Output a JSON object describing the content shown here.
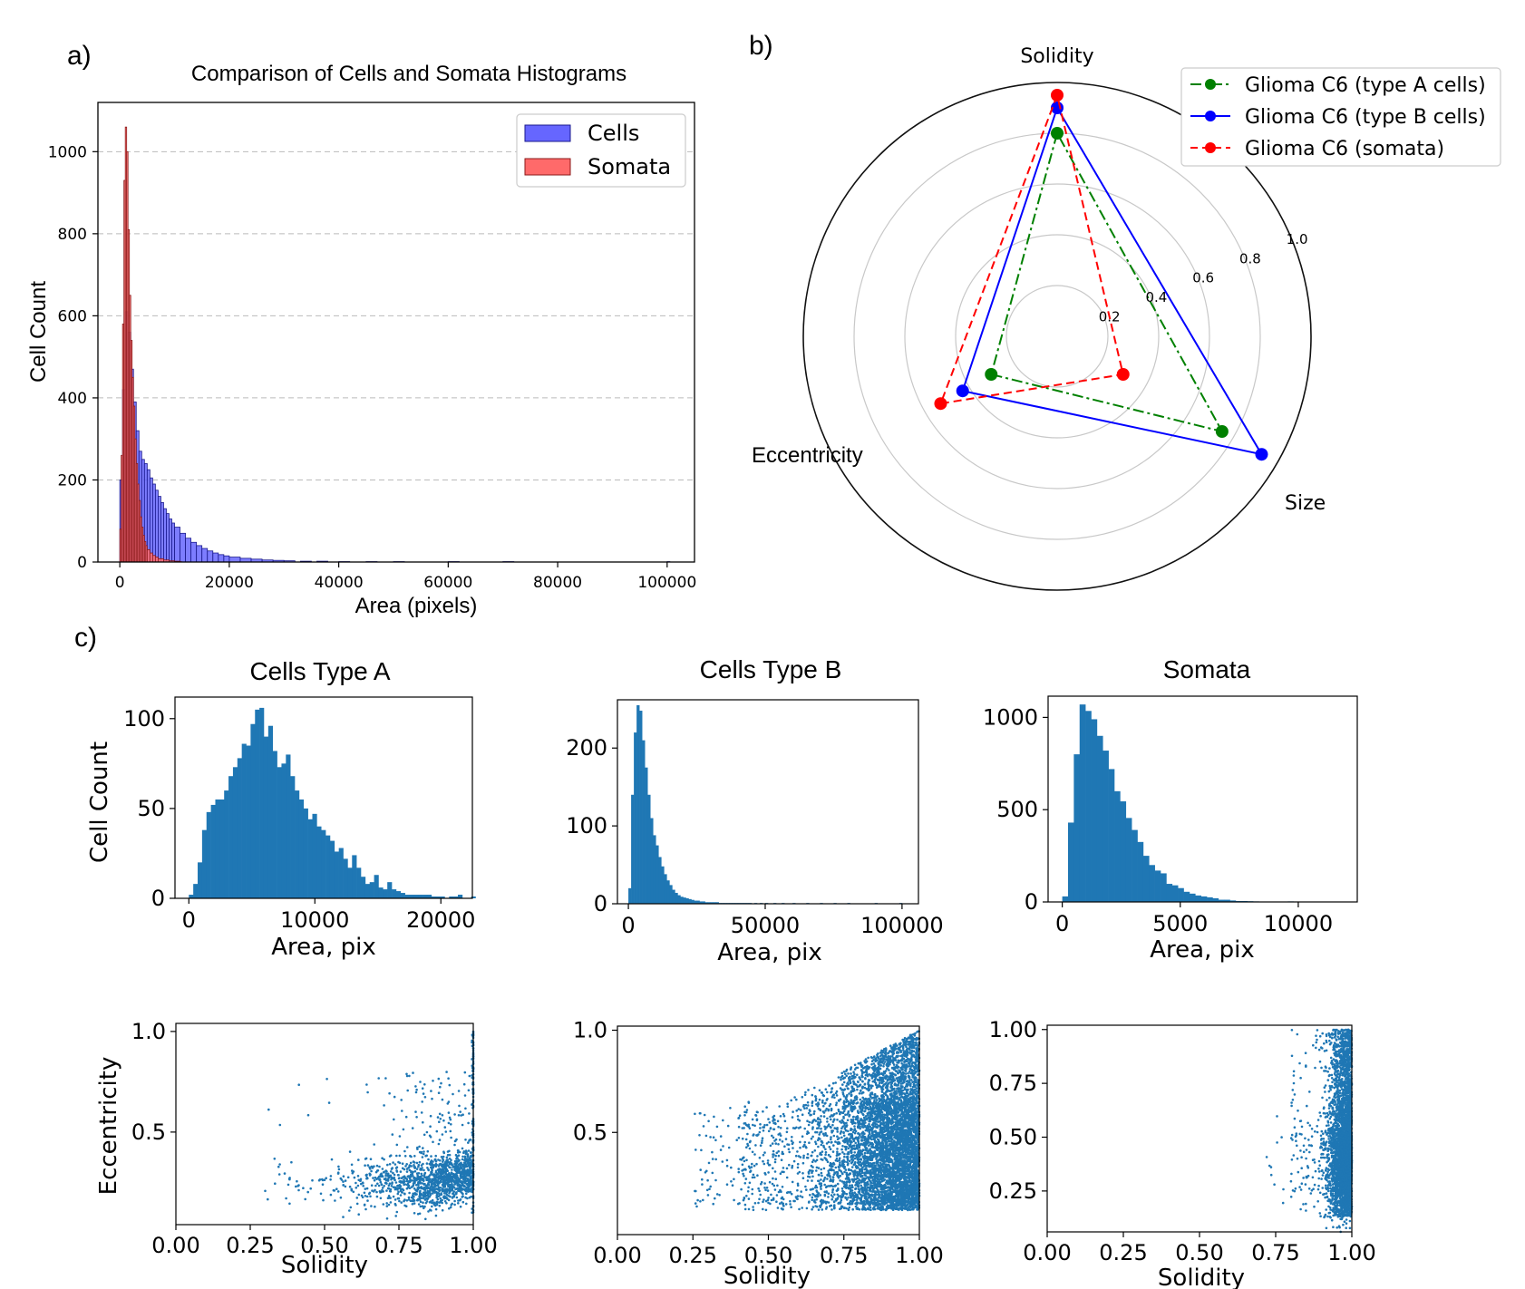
{
  "panels": {
    "a_label": "a)",
    "b_label": "b)",
    "c_label": "c)"
  },
  "chart_data": [
    {
      "id": "a",
      "type": "bar",
      "title": "Comparison of Cells and Somata Histograms",
      "xlabel": "Area (pixels)",
      "ylabel": "Cell Count",
      "xlim": [
        -4000,
        105000
      ],
      "ylim": [
        0,
        1120
      ],
      "xticks": [
        0,
        20000,
        40000,
        60000,
        80000,
        100000
      ],
      "yticks": [
        0,
        200,
        400,
        600,
        800,
        1000
      ],
      "grid": "y-dashed",
      "legend_position": "top-right",
      "colors": {
        "Cells": "#6666ff",
        "Somata": "#ff6a6a",
        "edge_cells": "#1a1a8c",
        "edge_somata": "#8b1a1a"
      },
      "series": [
        {
          "name": "Cells",
          "bin_width": 500,
          "bin_starts": [
            0,
            500,
            1000,
            1500,
            2000,
            2500,
            3000,
            3500,
            4000,
            4500,
            5000,
            5500,
            6000,
            6500,
            7000,
            7500,
            8000,
            8500,
            9000,
            9500,
            10000,
            11000,
            12000,
            13000,
            14000,
            15000,
            16000,
            17000,
            18000,
            19000,
            20000,
            22000,
            24000,
            26000,
            28000,
            30000,
            33000,
            36000,
            40000,
            45000,
            50000,
            55000,
            60000,
            70000,
            80000,
            90000,
            100000
          ],
          "values": [
            200,
            420,
            610,
            560,
            470,
            390,
            320,
            270,
            250,
            240,
            225,
            205,
            190,
            175,
            160,
            145,
            130,
            118,
            105,
            95,
            85,
            70,
            58,
            48,
            40,
            33,
            27,
            22,
            18,
            15,
            12,
            9,
            7,
            5,
            4,
            3,
            2,
            2,
            1,
            1,
            1,
            0,
            1,
            1,
            0,
            0,
            1
          ]
        },
        {
          "name": "Somata",
          "bin_width": 250,
          "bin_starts": [
            0,
            250,
            500,
            750,
            1000,
            1250,
            1500,
            1750,
            2000,
            2250,
            2500,
            2750,
            3000,
            3250,
            3500,
            3750,
            4000,
            4250,
            4500,
            4750,
            5000,
            5500,
            6000,
            6500,
            7000,
            8000,
            9000,
            10000,
            11000
          ],
          "values": [
            80,
            260,
            580,
            930,
            1060,
            1000,
            810,
            650,
            540,
            450,
            380,
            300,
            240,
            190,
            150,
            110,
            85,
            65,
            50,
            40,
            30,
            22,
            16,
            12,
            8,
            5,
            3,
            2,
            1
          ]
        }
      ]
    },
    {
      "id": "b",
      "type": "radar",
      "axes": [
        "Solidity",
        "Eccentricity",
        "Size"
      ],
      "rticks": [
        0.2,
        0.4,
        0.6,
        0.8,
        1.0
      ],
      "rtick_labels": [
        "0.2",
        "0.4",
        "0.6",
        "0.8",
        "1.0"
      ],
      "legend_position": "top-right",
      "series": [
        {
          "name": "Glioma C6 (type A cells)",
          "color": "#008000",
          "dash": "dashdot",
          "values": [
            0.8,
            0.3,
            0.75
          ]
        },
        {
          "name": "Glioma C6 (type B cells)",
          "color": "#0000ff",
          "dash": "solid",
          "values": [
            0.9,
            0.43,
            0.93
          ]
        },
        {
          "name": "Glioma C6 (somata)",
          "color": "#ff0000",
          "dash": "dashed",
          "values": [
            0.95,
            0.53,
            0.3
          ]
        }
      ]
    },
    {
      "id": "c1",
      "type": "bar",
      "title": "Cells Type A",
      "xlabel": "Area, pix",
      "ylabel": "Cell Count",
      "xlim": [
        -1100,
        22500
      ],
      "ylim": [
        0,
        112
      ],
      "xticks": [
        0,
        10000,
        20000
      ],
      "yticks": [
        0,
        50,
        100
      ],
      "color": "#1f77b4",
      "bin_width": 350,
      "values": [
        2,
        8,
        20,
        38,
        48,
        52,
        55,
        55,
        60,
        68,
        73,
        78,
        86,
        85,
        97,
        105,
        106,
        90,
        96,
        82,
        73,
        75,
        80,
        68,
        60,
        55,
        50,
        44,
        47,
        40,
        38,
        35,
        32,
        26,
        28,
        22,
        17,
        24,
        17,
        12,
        8,
        9,
        13,
        6,
        5,
        9,
        5,
        4,
        3,
        2,
        2,
        2,
        2,
        2,
        2,
        1,
        1,
        1,
        0,
        1,
        1,
        2,
        0,
        0,
        1
      ]
    },
    {
      "id": "c2",
      "type": "bar",
      "title": "Cells Type B",
      "xlabel": "Area, pix",
      "ylabel": "",
      "xlim": [
        -4000,
        106000
      ],
      "ylim": [
        0,
        262
      ],
      "xticks": [
        0,
        50000,
        100000
      ],
      "yticks": [
        0,
        100,
        200
      ],
      "color": "#1f77b4",
      "bin_width": 1000,
      "values": [
        20,
        140,
        220,
        255,
        248,
        210,
        175,
        140,
        110,
        88,
        75,
        60,
        48,
        38,
        30,
        24,
        18,
        14,
        11,
        9,
        8,
        7,
        6,
        5,
        4,
        4,
        3,
        3,
        2,
        2,
        2,
        2,
        2,
        1,
        1,
        1,
        1,
        1,
        1,
        1,
        1,
        1,
        1,
        1,
        1,
        0,
        1,
        0,
        1,
        0,
        1,
        0,
        0,
        1,
        0,
        0,
        1,
        0,
        0,
        0,
        1,
        0,
        0,
        0,
        0,
        1,
        0,
        0,
        0,
        0,
        1,
        0,
        0,
        0,
        0,
        1,
        0,
        0,
        0,
        0,
        1,
        0,
        0,
        0,
        0,
        0,
        0,
        0,
        0,
        0,
        1,
        0,
        0,
        0,
        0,
        0,
        0,
        0,
        0,
        1
      ]
    },
    {
      "id": "c3",
      "type": "bar",
      "title": "Somata",
      "xlabel": "Area, pix",
      "ylabel": "",
      "xlim": [
        -600,
        12500
      ],
      "ylim": [
        0,
        1115
      ],
      "xticks": [
        0,
        5000,
        10000
      ],
      "yticks": [
        0,
        500,
        1000
      ],
      "color": "#1f77b4",
      "bin_width": 245,
      "values": [
        30,
        430,
        800,
        1070,
        1035,
        990,
        900,
        820,
        720,
        600,
        545,
        455,
        390,
        325,
        250,
        200,
        170,
        155,
        98,
        90,
        75,
        55,
        45,
        35,
        30,
        25,
        20,
        12,
        12,
        8,
        5,
        5,
        4,
        3,
        2,
        2,
        1,
        1,
        1,
        3,
        2,
        1,
        0,
        1,
        0,
        0,
        1
      ]
    },
    {
      "id": "c4",
      "type": "scatter",
      "xlabel": "Solidity",
      "ylabel": "Eccentricity",
      "xlim": [
        0.0,
        1.0
      ],
      "ylim": [
        0.04,
        1.04
      ],
      "xticks": [
        0.0,
        0.25,
        0.5,
        0.75,
        1.0
      ],
      "xtick_labels": [
        "0.00",
        "0.25",
        "0.50",
        "0.75",
        "1.00"
      ],
      "yticks": [
        0.5,
        1.0
      ],
      "ytick_labels": [
        "0.5",
        "1.0"
      ],
      "color": "#1f77b4",
      "point_count": 1600,
      "distribution": "solidity skewed toward 1.00, eccentricity concentrated 0.15-0.35"
    },
    {
      "id": "c5",
      "type": "scatter",
      "xlabel": "Solidity",
      "ylabel": "",
      "xlim": [
        0.0,
        1.0
      ],
      "ylim": [
        0.0,
        1.02
      ],
      "xticks": [
        0.0,
        0.25,
        0.5,
        0.75,
        1.0
      ],
      "xtick_labels": [
        "0.00",
        "0.25",
        "0.50",
        "0.75",
        "1.00"
      ],
      "yticks": [
        0.5,
        1.0
      ],
      "ytick_labels": [
        "0.5",
        "1.0"
      ],
      "color": "#1f77b4",
      "point_count": 6000,
      "distribution": "dense cloud for solidity 0.6-1.0, eccentricity 0.1-1.0"
    },
    {
      "id": "c6",
      "type": "scatter",
      "xlabel": "Solidity",
      "ylabel": "",
      "xlim": [
        0.0,
        1.0
      ],
      "ylim": [
        0.06,
        1.02
      ],
      "xticks": [
        0.0,
        0.25,
        0.5,
        0.75,
        1.0
      ],
      "xtick_labels": [
        "0.00",
        "0.25",
        "0.50",
        "0.75",
        "1.00"
      ],
      "yticks": [
        0.25,
        0.5,
        0.75,
        1.0
      ],
      "ytick_labels": [
        "0.25",
        "0.50",
        "0.75",
        "1.00"
      ],
      "color": "#1f77b4",
      "point_count": 4000,
      "distribution": "tight vertical band at solidity 0.9-1.0"
    }
  ]
}
